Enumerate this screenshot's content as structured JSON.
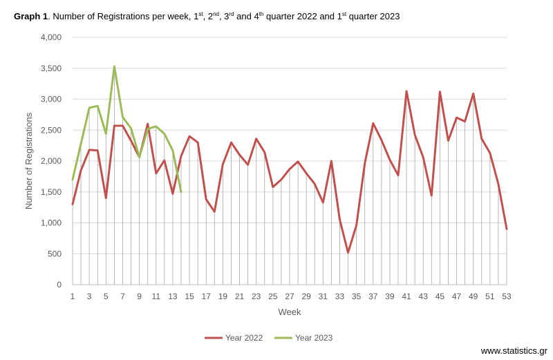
{
  "title": {
    "bold": "Graph 1",
    "parts": [
      ". Number of Registrations per week, 1",
      "st",
      ", 2",
      "nd",
      ", 3",
      "rd",
      " and 4",
      "th",
      " quarter 2022 and 1",
      "st",
      " quarter 2023"
    ]
  },
  "footer": "www.statistics.gr",
  "chart_data": {
    "type": "line",
    "title": "Number of Registrations per week, 1st, 2nd, 3rd and 4th quarter 2022 and 1st quarter 2023",
    "xlabel": "Week",
    "ylabel": "Number of Registrations",
    "ylim": [
      0,
      4000
    ],
    "yticks": [
      0,
      500,
      1000,
      1500,
      2000,
      2500,
      3000,
      3500,
      4000
    ],
    "ytick_labels": [
      "0",
      "500",
      "1,000",
      "1,500",
      "2,000",
      "2,500",
      "3,000",
      "3,500",
      "4,000"
    ],
    "xticks": [
      1,
      3,
      5,
      7,
      9,
      11,
      13,
      15,
      17,
      19,
      21,
      23,
      25,
      27,
      29,
      31,
      33,
      35,
      37,
      39,
      41,
      43,
      45,
      47,
      49,
      51,
      53
    ],
    "grid": true,
    "legend_position": "bottom",
    "series": [
      {
        "name": "Year 2022",
        "color": "#c0504d",
        "x": [
          1,
          2,
          3,
          4,
          5,
          6,
          7,
          8,
          9,
          10,
          11,
          12,
          13,
          14,
          15,
          16,
          17,
          18,
          19,
          20,
          21,
          22,
          23,
          24,
          25,
          26,
          27,
          28,
          29,
          30,
          31,
          32,
          33,
          34,
          35,
          36,
          37,
          38,
          39,
          40,
          41,
          42,
          43,
          44,
          45,
          46,
          47,
          48,
          49,
          50,
          51,
          52,
          53
        ],
        "values": [
          1300,
          1850,
          2180,
          2170,
          1400,
          2570,
          2570,
          2330,
          2060,
          2600,
          1800,
          2010,
          1470,
          2080,
          2400,
          2300,
          1380,
          1180,
          1950,
          2300,
          2100,
          1940,
          2360,
          2140,
          1580,
          1700,
          1870,
          1990,
          1800,
          1630,
          1330,
          2000,
          1050,
          520,
          960,
          1960,
          2610,
          2340,
          2020,
          1770,
          3130,
          2420,
          2060,
          1440,
          3120,
          2330,
          2700,
          2640,
          3090,
          2360,
          2130,
          1630,
          900
        ]
      },
      {
        "name": "Year 2023",
        "color": "#9bbb59",
        "x": [
          1,
          2,
          3,
          4,
          5,
          6,
          7,
          8,
          9,
          10,
          11,
          12,
          13,
          14
        ],
        "values": [
          1700,
          2280,
          2860,
          2890,
          2440,
          3530,
          2710,
          2530,
          2060,
          2520,
          2560,
          2440,
          2170,
          1500
        ]
      }
    ]
  }
}
